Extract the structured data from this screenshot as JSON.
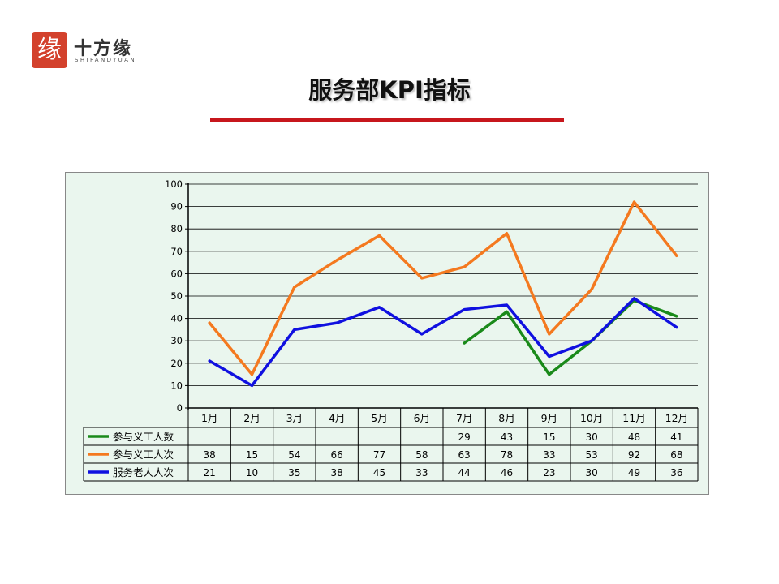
{
  "logo": {
    "seal_char": "缘",
    "name": "十方缘",
    "subtitle": "SHIFANDYUAN"
  },
  "title": "服务部KPI指标",
  "colors": {
    "accent": "#c7161c",
    "plot_bg": "#eaf6ee",
    "grid": "#000000",
    "text": "#000000"
  },
  "chart_data": {
    "type": "line",
    "categories": [
      "1月",
      "2月",
      "3月",
      "4月",
      "5月",
      "6月",
      "7月",
      "8月",
      "9月",
      "10月",
      "11月",
      "12月"
    ],
    "ylim": [
      0,
      100
    ],
    "yticks": [
      0,
      10,
      20,
      30,
      40,
      50,
      60,
      70,
      80,
      90,
      100
    ],
    "grid": true,
    "legend": "data-table-left",
    "series": [
      {
        "name": "参与义工人数",
        "color": "#1a8a1a",
        "values": [
          null,
          null,
          null,
          null,
          null,
          null,
          29,
          43,
          15,
          30,
          48,
          41
        ]
      },
      {
        "name": "参与义工人次",
        "color": "#f4791f",
        "values": [
          38,
          15,
          54,
          66,
          77,
          58,
          63,
          78,
          33,
          53,
          92,
          68
        ]
      },
      {
        "name": "服务老人人次",
        "color": "#1010e0",
        "values": [
          21,
          10,
          35,
          38,
          45,
          33,
          44,
          46,
          23,
          30,
          49,
          36
        ]
      }
    ]
  }
}
